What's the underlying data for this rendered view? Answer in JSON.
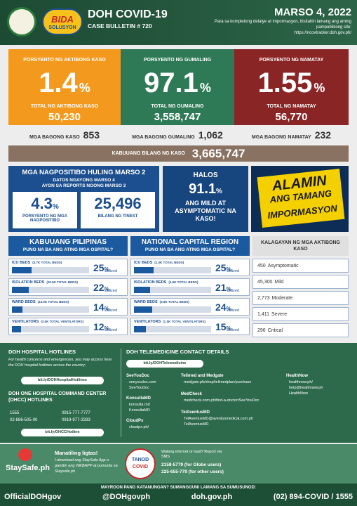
{
  "header": {
    "title": "DOH COVID-19",
    "bulletin": "CASE BULLETIN # 720",
    "logo_title": "BIDA",
    "logo_subtitle": "SOLUSYON",
    "date": "MARSO 4, 2022",
    "note": "Para sa kumpletong detalye at impormasyon, bisitahin lamang ang aming pampublikong site:",
    "url": "https://ncovtracker.doh.gov.ph/"
  },
  "stats": [
    {
      "label": "PORSYENTO NG AKTIBONG KASO",
      "percent": 1.4,
      "unit": "%",
      "sublabel": "TOTAL NG AKTIBONG KASO",
      "count": "50,230"
    },
    {
      "label": "PORSYENTO NG GUMALING",
      "percent": 97.1,
      "unit": "%",
      "sublabel": "TOTAL NG GUMALING",
      "count": "3,558,747"
    },
    {
      "label": "PORSYENTO NG NAMATAY",
      "percent": 1.55,
      "unit": "%",
      "sublabel": "TOTAL NG NAMATAY",
      "count": "56,770"
    }
  ],
  "new_cases": [
    {
      "label": "MGA BAGONG KASO",
      "value": "853"
    },
    {
      "label": "MGA BAGONG GUMALING",
      "value": "1,062"
    },
    {
      "label": "MGA BAGONG NAMATAY",
      "value": "232"
    }
  ],
  "total": {
    "label": "KABUUANG BILANG NG KASO",
    "value": "3,665,747"
  },
  "positivity": {
    "title": "MGA NAGPOSITIBO HULING MARSO 2",
    "subtitle": [
      "DATOS NGAYONG MARSO 4",
      "AYON SA REPORTS NOONG MARSO 2"
    ],
    "rate": 4.3,
    "unit": "%",
    "rate_label": "PORSYENTO NG MGA NAGPOSITIBO",
    "tested": "25,496",
    "tested_label": "BILANG NG TINEST"
  },
  "mild": {
    "lead": "HALOS",
    "percent": 91.1,
    "unit": "%",
    "text": "ANG MILD AT ASYMPTOMATIC NA KASO!"
  },
  "campaign": {
    "lines": [
      "ALAMIN",
      "ANG TAMANG",
      "IMPORMASYON"
    ]
  },
  "hospitals": {
    "unit": "%",
    "utilized": "Utilized",
    "panels": [
      {
        "title": "KABUUANG PILIPINAS",
        "subtitle": "PUNO NA BA ANG ATING MGA OSPITAL?",
        "rows": [
          {
            "label": "ICU BEDS",
            "total": "(3.7K TOTAL BEDS)",
            "percent": 25
          },
          {
            "label": "ISOLATION BEDS",
            "total": "(20.5K TOTAL BEDS)",
            "percent": 22
          },
          {
            "label": "WARD BEDS",
            "total": "(14.0K TOTAL BEDS)",
            "percent": 14
          },
          {
            "label": "VENTILATORS",
            "total": "(3.0K TOTAL VENTILATORS)",
            "percent": 12
          }
        ]
      },
      {
        "title": "NATIONAL CAPITAL REGION",
        "subtitle": "PUNO NA BA ANG ATING MGA OSPITAL?",
        "rows": [
          {
            "label": "ICU BEDS",
            "total": "(1.3K TOTAL BEDS)",
            "percent": 25
          },
          {
            "label": "ISOLATION BEDS",
            "total": "(4.6K TOTAL BEDS)",
            "percent": 21
          },
          {
            "label": "WARD BEDS",
            "total": "(3.9K TOTAL BEDS)",
            "percent": 24
          },
          {
            "label": "VENTILATORS",
            "total": "(1.0K TOTAL VENTILATORS)",
            "percent": 15
          }
        ]
      }
    ]
  },
  "active_cases": {
    "title": "KALAGAYAN NG MGA AKTIBONG KASO",
    "rows": [
      {
        "count": "450",
        "status": "Asymptomatic"
      },
      {
        "count": "45,300",
        "status": "Mild"
      },
      {
        "count": "2,773",
        "status": "Moderate"
      },
      {
        "count": "1,411",
        "status": "Severe"
      },
      {
        "count": "296",
        "status": "Critical"
      }
    ]
  },
  "hotlines": {
    "title": "DOH HOSPITAL HOTLINES",
    "text": "For health concerns and emergencies, you may access here the DOH hospital hotlines across the country:",
    "link": "bit.ly/DOHHospitalHotlines",
    "ohcc_title": "DOH ONE HOSPITAL COMMAND CENTER (OHCC) HOTLINES",
    "numbers": [
      "1555",
      "0915-777-7777",
      "02-886-505-00",
      "0919-977-3333"
    ],
    "ohcc_link": "bit.ly/OHCCHotline"
  },
  "telemedicine": {
    "title": "DOH TELEMEDICINE CONTACT DETAILS",
    "link": "bit.ly/DOHTelemedicine",
    "providers": [
      {
        "name": "SeeYouDoc",
        "items": [
          "seeyoudoc.com",
          "SeeYouDoc"
        ]
      },
      {
        "name": "KonsultaMD",
        "items": [
          "konsulta.md",
          "KonsultaMD"
        ]
      },
      {
        "name": "CloudPx",
        "items": [
          "cloudpx.ph/"
        ]
      },
      {
        "name": "Telimed and Medgate",
        "items": [
          "medgate.ph/shop/telimedplan/purchase"
        ]
      },
      {
        "name": "MedCheck",
        "items": [
          "medcheck.com.ph/find-a-doctor/SeeYouDoc"
        ]
      },
      {
        "name": "TelAventusMD",
        "items": [
          "TelAventusMD@aventusmedical.com.ph",
          "TelAventusMD"
        ]
      },
      {
        "name": "HealthNow",
        "items": [
          "healthnow.ph/",
          "help@healthnow.ph",
          "HealthNow"
        ]
      }
    ]
  },
  "staysafe": {
    "logo": "StaySafe.ph",
    "title": "Manatiling ligtas!",
    "text": "I-download ang StaySafe App o gamitin ang WEBAPP at pumunta sa Staysafe.ph",
    "tanod": [
      "TANOD",
      "COVID"
    ],
    "sms_title": "Walang internet or load? Report via SMS",
    "sms": [
      "2158-5779 (for Globe users)",
      "225-655-779 (for other users)"
    ]
  },
  "footer": {
    "question": "MAYROON PANG KATANUNGAN? SUMANGGUNI LAMANG SA SUMUSUNOD:",
    "facebook": "OfficialDOHgov",
    "twitter": "@DOHgovph",
    "website": "doh.gov.ph",
    "phone": "(02) 894-COVID / 1555"
  }
}
